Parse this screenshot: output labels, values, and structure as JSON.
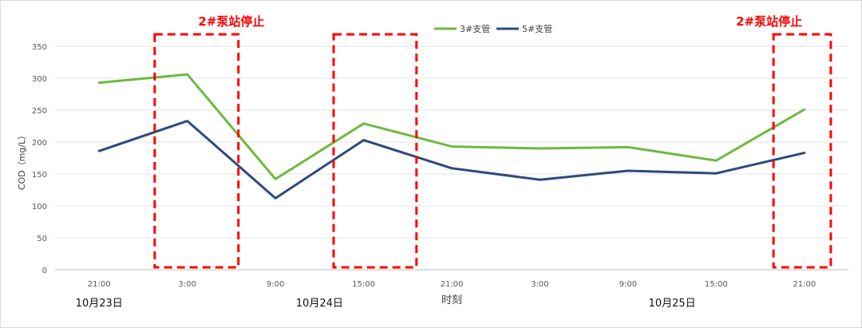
{
  "chart_data": {
    "type": "line",
    "title": "",
    "xlabel": "时刻",
    "ylabel": "COD（mg/L）",
    "ylim": [
      0,
      350
    ],
    "y_ticks": [
      0,
      50,
      100,
      150,
      200,
      250,
      300,
      350
    ],
    "grid": "horizontal",
    "legend_position": "top-center",
    "categories": [
      "21:00",
      "3:00",
      "9:00",
      "15:00",
      "21:00",
      "3:00",
      "9:00",
      "15:00",
      "21:00"
    ],
    "date_labels": [
      {
        "label": "10月23日",
        "at_index": 0
      },
      {
        "label": "10月24日",
        "at_index": 2.5
      },
      {
        "label": "10月25日",
        "at_index": 6.5
      }
    ],
    "series": [
      {
        "name": "3#支管",
        "color": "#70b83f",
        "values": [
          293,
          306,
          142,
          229,
          193,
          190,
          192,
          171,
          251
        ]
      },
      {
        "name": "5#支管",
        "color": "#2e4a7e",
        "values": [
          186,
          233,
          112,
          203,
          159,
          141,
          155,
          151,
          183
        ]
      }
    ],
    "annotations": [
      {
        "text": "2#泵站停止",
        "color": "#ff0000",
        "label_at_index": 1.5,
        "boxes": [
          {
            "from_index": 0.63,
            "to_index": 1.58
          },
          {
            "from_index": 2.66,
            "to_index": 3.6
          }
        ]
      },
      {
        "text": "2#泵站停止",
        "color": "#ff0000",
        "label_at_index": 7.6,
        "boxes": [
          {
            "from_index": 7.65,
            "to_index": 8.3
          }
        ]
      }
    ]
  }
}
